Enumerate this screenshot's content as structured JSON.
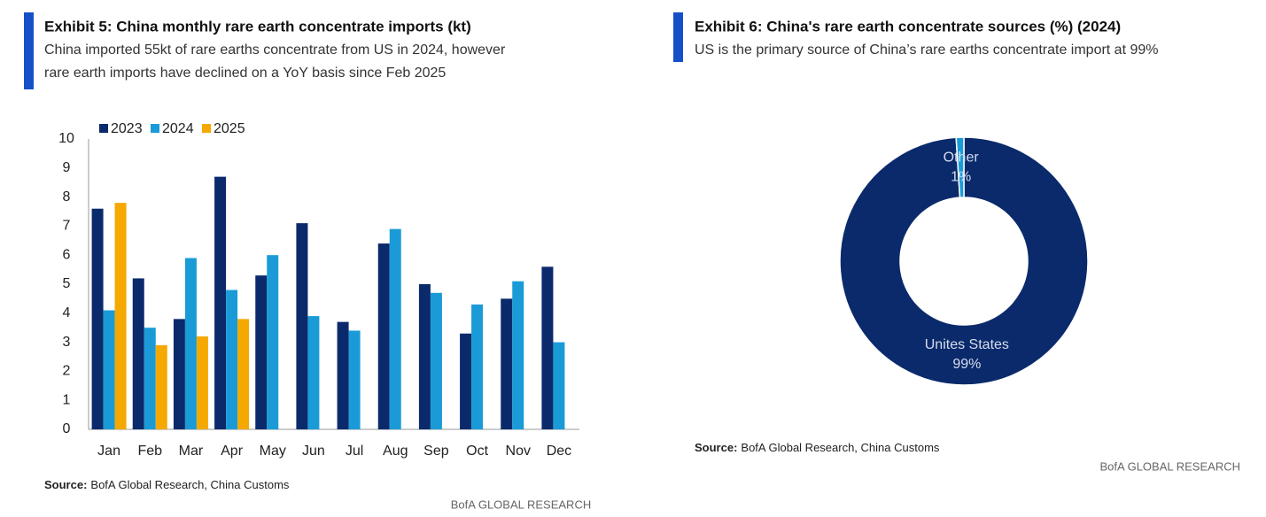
{
  "chart_data": [
    {
      "type": "bar",
      "title": "Exhibit 5: China monthly rare earth concentrate imports (kt)",
      "subtitle": [
        "China imported 55kt of rare earths concentrate from US in 2024, however",
        "rare earth imports have declined on a YoY basis since Feb 2025"
      ],
      "categories": [
        "Jan",
        "Feb",
        "Mar",
        "Apr",
        "May",
        "Jun",
        "Jul",
        "Aug",
        "Sep",
        "Oct",
        "Nov",
        "Dec"
      ],
      "series": [
        {
          "name": "2023",
          "color": "#0a2a6b",
          "values": [
            7.6,
            5.2,
            3.8,
            8.7,
            5.3,
            7.1,
            3.7,
            6.4,
            5.0,
            3.3,
            4.5,
            5.6
          ]
        },
        {
          "name": "2024",
          "color": "#1a9bd7",
          "values": [
            4.1,
            3.5,
            5.9,
            4.8,
            6.0,
            3.9,
            3.4,
            6.9,
            4.7,
            4.3,
            5.1,
            3.0
          ]
        },
        {
          "name": "2025",
          "color": "#f5a800",
          "values": [
            7.8,
            2.9,
            3.2,
            3.8,
            null,
            null,
            null,
            null,
            null,
            null,
            null,
            null
          ]
        }
      ],
      "ylim": [
        0,
        10
      ],
      "yticks": [
        0,
        1,
        2,
        3,
        4,
        5,
        6,
        7,
        8,
        9,
        10
      ],
      "grid": false,
      "legend": "top-left",
      "source_label": "Source:",
      "source": "BofA Global Research, China Customs",
      "footer": "BofA GLOBAL RESEARCH"
    },
    {
      "type": "pie",
      "title": "Exhibit 6: China's rare earth concentrate sources (%) (2024)",
      "subtitle": [
        "US is the primary source of China’s rare earths concentrate import at 99%"
      ],
      "categories": [
        "Unites States",
        "Other"
      ],
      "values": [
        99,
        1
      ],
      "value_labels": [
        "99%",
        "1%"
      ],
      "colors": [
        "#0a2a6b",
        "#1a9bd7"
      ],
      "donut": true,
      "source_label": "Source:",
      "source": "BofA Global Research, China Customs",
      "footer": "BofA GLOBAL RESEARCH"
    }
  ]
}
